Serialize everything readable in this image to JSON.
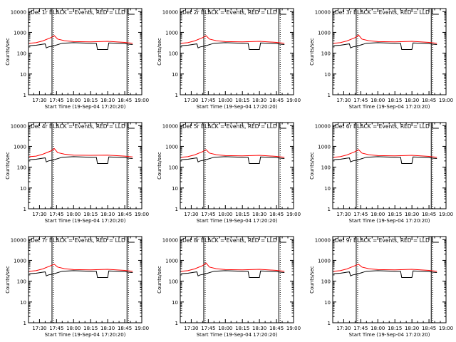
{
  "colors": {
    "events": "#000000",
    "lld": "#ff0000",
    "axes": "#000000",
    "background": "#ffffff"
  },
  "chart_data": [
    {
      "type": "line",
      "title": "Det 1r  BLACK = Events, RED = LLD",
      "xlabel": "Start Time (19-Sep-04 17:20:20)",
      "ylabel": "Counts/sec",
      "xticks": [
        "17:30",
        "17:45",
        "18:00",
        "18:15",
        "18:30",
        "18:45",
        "19:00"
      ],
      "yticks": [
        "1",
        "10",
        "100",
        "1000",
        "10000"
      ],
      "yscale": "log",
      "ylim": [
        1,
        14000
      ],
      "series": [
        {
          "name": "Events",
          "x": [
            "17:21",
            "17:27",
            "17:33",
            "17:35",
            "17:36",
            "17:38",
            "17:42",
            "17:50",
            "18:00",
            "18:15",
            "18:20",
            "18:21",
            "18:30",
            "18:31",
            "18:45",
            "18:48",
            "18:52"
          ],
          "y": [
            230,
            240,
            270,
            280,
            180,
            200,
            220,
            300,
            320,
            300,
            300,
            150,
            150,
            310,
            290,
            270,
            260
          ]
        },
        {
          "name": "LLD",
          "x": [
            "17:21",
            "17:27",
            "17:33",
            "17:40",
            "17:43",
            "17:46",
            "17:52",
            "18:00",
            "18:15",
            "18:30",
            "18:45",
            "18:52"
          ],
          "y": [
            300,
            320,
            390,
            560,
            700,
            480,
            400,
            360,
            350,
            370,
            330,
            300
          ]
        }
      ]
    },
    {
      "type": "line",
      "title": "Det 2r  BLACK = Events, RED = LLD",
      "xlabel": "Start Time (19-Sep-04 17:20:20)",
      "ylabel": "Counts/sec",
      "xticks": [
        "17:30",
        "17:45",
        "18:00",
        "18:15",
        "18:30",
        "18:45",
        "19:00"
      ],
      "yticks": [
        "1",
        "10",
        "100",
        "1000",
        "10000"
      ],
      "yscale": "log",
      "ylim": [
        1,
        14000
      ],
      "series": [
        {
          "name": "Events",
          "x": [
            "17:21",
            "17:27",
            "17:33",
            "17:35",
            "17:36",
            "17:38",
            "17:42",
            "17:50",
            "18:00",
            "18:15",
            "18:20",
            "18:21",
            "18:30",
            "18:31",
            "18:45",
            "18:48",
            "18:52"
          ],
          "y": [
            230,
            240,
            270,
            280,
            180,
            200,
            220,
            300,
            320,
            300,
            300,
            150,
            150,
            310,
            290,
            270,
            260
          ]
        },
        {
          "name": "LLD",
          "x": [
            "17:21",
            "17:27",
            "17:33",
            "17:40",
            "17:43",
            "17:46",
            "17:52",
            "18:00",
            "18:15",
            "18:30",
            "18:45",
            "18:52"
          ],
          "y": [
            300,
            320,
            390,
            560,
            700,
            480,
            400,
            360,
            350,
            370,
            330,
            300
          ]
        }
      ]
    },
    {
      "type": "line",
      "title": "Det 3r  BLACK = Events, RED = LLD",
      "xlabel": "Start Time (19-Sep-04 17:20:20)",
      "ylabel": "Counts/sec",
      "xticks": [
        "17:30",
        "17:45",
        "18:00",
        "18:15",
        "18:30",
        "18:45",
        "19:00"
      ],
      "yticks": [
        "1",
        "10",
        "100",
        "1000",
        "10000"
      ],
      "yscale": "log",
      "ylim": [
        1,
        14000
      ],
      "series": [
        {
          "name": "Events",
          "x": [
            "17:21",
            "17:27",
            "17:33",
            "17:35",
            "17:36",
            "17:38",
            "17:42",
            "17:50",
            "18:00",
            "18:15",
            "18:20",
            "18:21",
            "18:30",
            "18:31",
            "18:45",
            "18:48",
            "18:52"
          ],
          "y": [
            230,
            240,
            270,
            280,
            180,
            200,
            220,
            300,
            320,
            300,
            300,
            150,
            150,
            310,
            290,
            270,
            260
          ]
        },
        {
          "name": "LLD",
          "x": [
            "17:21",
            "17:27",
            "17:33",
            "17:40",
            "17:43",
            "17:46",
            "17:52",
            "18:00",
            "18:15",
            "18:30",
            "18:45",
            "18:52"
          ],
          "y": [
            300,
            320,
            390,
            560,
            750,
            480,
            400,
            360,
            350,
            370,
            330,
            300
          ]
        }
      ]
    },
    {
      "type": "line",
      "title": "Det 4r  BLACK = Events, RED = LLD",
      "xlabel": "Start Time (19-Sep-04 17:20:20)",
      "ylabel": "Counts/sec",
      "xticks": [
        "17:30",
        "17:45",
        "18:00",
        "18:15",
        "18:30",
        "18:45",
        "19:00"
      ],
      "yticks": [
        "1",
        "10",
        "100",
        "1000",
        "10000"
      ],
      "yscale": "log",
      "ylim": [
        1,
        14000
      ],
      "series": [
        {
          "name": "Events",
          "x": [
            "17:21",
            "17:27",
            "17:33",
            "17:35",
            "17:36",
            "17:38",
            "17:42",
            "17:50",
            "18:00",
            "18:15",
            "18:20",
            "18:21",
            "18:30",
            "18:31",
            "18:45",
            "18:48",
            "18:52"
          ],
          "y": [
            230,
            240,
            270,
            280,
            180,
            200,
            220,
            300,
            320,
            300,
            300,
            150,
            150,
            310,
            290,
            270,
            260
          ]
        },
        {
          "name": "LLD",
          "x": [
            "17:21",
            "17:27",
            "17:33",
            "17:40",
            "17:43",
            "17:46",
            "17:52",
            "18:00",
            "18:15",
            "18:30",
            "18:45",
            "18:52"
          ],
          "y": [
            320,
            340,
            420,
            600,
            780,
            500,
            420,
            380,
            370,
            380,
            340,
            310
          ]
        }
      ]
    },
    {
      "type": "line",
      "title": "Det 5r  BLACK = Events, RED = LLD",
      "xlabel": "Start Time (19-Sep-04 17:20:20)",
      "ylabel": "Counts/sec",
      "xticks": [
        "17:30",
        "17:45",
        "18:00",
        "18:15",
        "18:30",
        "18:45",
        "19:00"
      ],
      "yticks": [
        "1",
        "10",
        "100",
        "1000",
        "10000"
      ],
      "yscale": "log",
      "ylim": [
        1,
        14000
      ],
      "series": [
        {
          "name": "Events",
          "x": [
            "17:21",
            "17:27",
            "17:33",
            "17:35",
            "17:36",
            "17:38",
            "17:42",
            "17:50",
            "18:00",
            "18:15",
            "18:20",
            "18:21",
            "18:30",
            "18:31",
            "18:45",
            "18:48",
            "18:52"
          ],
          "y": [
            230,
            240,
            270,
            280,
            180,
            200,
            220,
            300,
            320,
            300,
            300,
            150,
            150,
            310,
            290,
            270,
            260
          ]
        },
        {
          "name": "LLD",
          "x": [
            "17:21",
            "17:27",
            "17:33",
            "17:40",
            "17:43",
            "17:46",
            "17:52",
            "18:00",
            "18:15",
            "18:30",
            "18:45",
            "18:52"
          ],
          "y": [
            300,
            320,
            390,
            560,
            700,
            480,
            400,
            360,
            350,
            370,
            330,
            300
          ]
        }
      ]
    },
    {
      "type": "line",
      "title": "Det 6r  BLACK = Events, RED = LLD",
      "xlabel": "Start Time (19-Sep-04 17:20:20)",
      "ylabel": "Counts/sec",
      "xticks": [
        "17:30",
        "17:45",
        "18:00",
        "18:15",
        "18:30",
        "18:45",
        "19:00"
      ],
      "yticks": [
        "1",
        "10",
        "100",
        "1000",
        "10000"
      ],
      "yscale": "log",
      "ylim": [
        1,
        14000
      ],
      "series": [
        {
          "name": "Events",
          "x": [
            "17:21",
            "17:27",
            "17:33",
            "17:35",
            "17:36",
            "17:38",
            "17:42",
            "17:50",
            "18:00",
            "18:15",
            "18:20",
            "18:21",
            "18:30",
            "18:31",
            "18:45",
            "18:48",
            "18:52"
          ],
          "y": [
            230,
            240,
            270,
            280,
            180,
            200,
            220,
            300,
            320,
            300,
            300,
            150,
            150,
            310,
            290,
            270,
            260
          ]
        },
        {
          "name": "LLD",
          "x": [
            "17:21",
            "17:27",
            "17:33",
            "17:40",
            "17:43",
            "17:46",
            "17:52",
            "18:00",
            "18:15",
            "18:30",
            "18:45",
            "18:52"
          ],
          "y": [
            300,
            320,
            390,
            560,
            700,
            480,
            400,
            360,
            350,
            370,
            330,
            300
          ]
        }
      ]
    },
    {
      "type": "line",
      "title": "Det 7r  BLACK = Events, RED = LLD",
      "xlabel": "Start Time (19-Sep-04 17:20:20)",
      "ylabel": "Counts/sec",
      "xticks": [
        "17:30",
        "17:45",
        "18:00",
        "18:15",
        "18:30",
        "18:45",
        "19:00"
      ],
      "yticks": [
        "1",
        "10",
        "100",
        "1000",
        "10000"
      ],
      "yscale": "log",
      "ylim": [
        1,
        14000
      ],
      "series": [
        {
          "name": "Events",
          "x": [
            "17:21",
            "17:27",
            "17:33",
            "17:35",
            "17:36",
            "17:38",
            "17:42",
            "17:50",
            "18:00",
            "18:15",
            "18:20",
            "18:21",
            "18:30",
            "18:31",
            "18:45",
            "18:48",
            "18:52"
          ],
          "y": [
            230,
            240,
            270,
            280,
            180,
            200,
            220,
            300,
            320,
            300,
            300,
            150,
            150,
            310,
            290,
            270,
            260
          ]
        },
        {
          "name": "LLD",
          "x": [
            "17:21",
            "17:27",
            "17:33",
            "17:40",
            "17:43",
            "17:46",
            "17:52",
            "18:00",
            "18:15",
            "18:30",
            "18:45",
            "18:52"
          ],
          "y": [
            300,
            320,
            390,
            560,
            650,
            480,
            400,
            360,
            350,
            370,
            330,
            300
          ]
        }
      ]
    },
    {
      "type": "line",
      "title": "Det 8r  BLACK = Events, RED = LLD",
      "xlabel": "Start Time (19-Sep-04 17:20:20)",
      "ylabel": "Counts/sec",
      "xticks": [
        "17:30",
        "17:45",
        "18:00",
        "18:15",
        "18:30",
        "18:45",
        "19:00"
      ],
      "yticks": [
        "1",
        "10",
        "100",
        "1000",
        "10000"
      ],
      "yscale": "log",
      "ylim": [
        1,
        14000
      ],
      "series": [
        {
          "name": "Events",
          "x": [
            "17:21",
            "17:27",
            "17:33",
            "17:35",
            "17:36",
            "17:38",
            "17:42",
            "17:50",
            "18:00",
            "18:15",
            "18:20",
            "18:21",
            "18:30",
            "18:31",
            "18:45",
            "18:48",
            "18:52"
          ],
          "y": [
            230,
            240,
            270,
            280,
            180,
            200,
            220,
            300,
            320,
            300,
            300,
            150,
            150,
            310,
            290,
            270,
            260
          ]
        },
        {
          "name": "LLD",
          "x": [
            "17:21",
            "17:27",
            "17:33",
            "17:40",
            "17:43",
            "17:46",
            "17:52",
            "18:00",
            "18:15",
            "18:30",
            "18:45",
            "18:52"
          ],
          "y": [
            300,
            320,
            390,
            560,
            750,
            480,
            400,
            360,
            350,
            370,
            330,
            300
          ]
        }
      ]
    },
    {
      "type": "line",
      "title": "Det 9r  BLACK = Events, RED = LLD",
      "xlabel": "Start Time (19-Sep-04 17:20:20)",
      "ylabel": "Counts/sec",
      "xticks": [
        "17:30",
        "17:45",
        "18:00",
        "18:15",
        "18:30",
        "18:45",
        "19:00"
      ],
      "yticks": [
        "1",
        "10",
        "100",
        "1000",
        "10000"
      ],
      "yscale": "log",
      "ylim": [
        1,
        14000
      ],
      "series": [
        {
          "name": "Events",
          "x": [
            "17:21",
            "17:27",
            "17:33",
            "17:35",
            "17:36",
            "17:38",
            "17:42",
            "17:50",
            "18:00",
            "18:15",
            "18:20",
            "18:21",
            "18:30",
            "18:31",
            "18:45",
            "18:48",
            "18:52"
          ],
          "y": [
            230,
            240,
            270,
            280,
            180,
            200,
            220,
            300,
            320,
            300,
            300,
            150,
            150,
            310,
            290,
            270,
            260
          ]
        },
        {
          "name": "LLD",
          "x": [
            "17:21",
            "17:27",
            "17:33",
            "17:40",
            "17:43",
            "17:46",
            "17:52",
            "18:00",
            "18:15",
            "18:30",
            "18:45",
            "18:52"
          ],
          "y": [
            300,
            320,
            390,
            560,
            650,
            480,
            400,
            360,
            350,
            370,
            330,
            300
          ]
        }
      ]
    }
  ]
}
